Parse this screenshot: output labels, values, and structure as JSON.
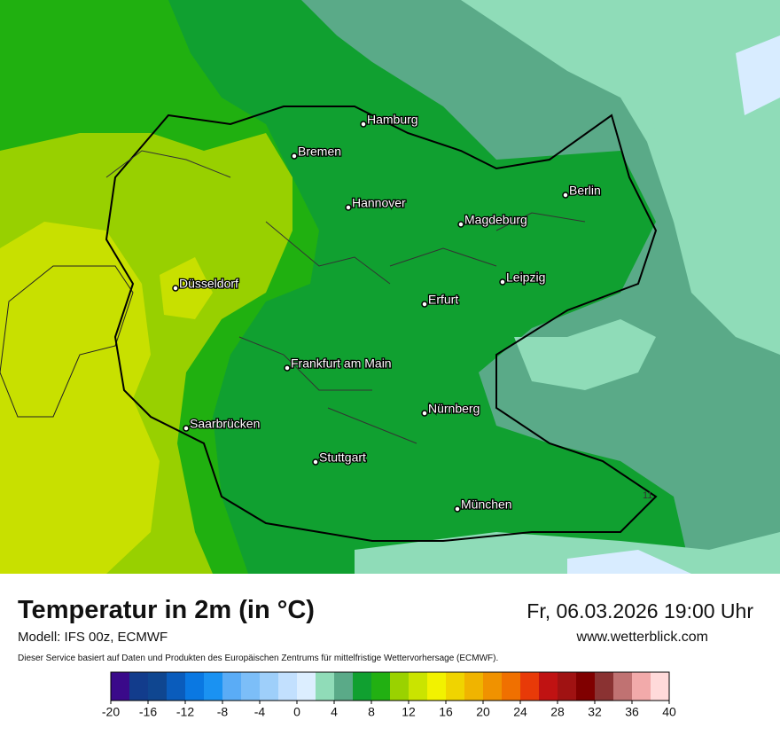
{
  "map": {
    "cities": [
      "Hamburg",
      "Bremen",
      "Berlin",
      "Hannover",
      "Magdeburg",
      "Leipzig",
      "Düsseldorf",
      "Erfurt",
      "Frankfurt am Main",
      "Nürnberg",
      "Saarbrücken",
      "Stuttgart",
      "München"
    ],
    "isotherm_label": "11"
  },
  "footer": {
    "title": "Temperatur in 2m (in °C)",
    "model": "Modell: IFS 00z, ECMWF",
    "disclaimer": "Dieser Service basiert auf Daten und Produkten des Europäischen Zentrums für mittelfristige Wettervorhersage (ECMWF).",
    "datetime": "Fr, 06.03.2026 19:00 Uhr",
    "website": "www.wetterblick.com"
  },
  "colorbar": {
    "range": [
      -20,
      40
    ],
    "ticks": [
      -20,
      -16,
      -12,
      -8,
      -4,
      0,
      4,
      8,
      12,
      16,
      20,
      24,
      28,
      32,
      36,
      40
    ],
    "colors": [
      "#3a0a8a",
      "#123c8c",
      "#0f4690",
      "#0a5cbc",
      "#0a78e2",
      "#1a92f2",
      "#5aacf6",
      "#7cbef8",
      "#9ecffa",
      "#c2e0fe",
      "#dceeff",
      "#90dcb8",
      "#5aaa88",
      "#10a030",
      "#22b012",
      "#9ad200",
      "#cae400",
      "#f2f200",
      "#f0d400",
      "#f0b400",
      "#f09200",
      "#f07000",
      "#e83a08",
      "#c01212",
      "#a01212",
      "#800000",
      "#8a3232",
      "#c07272",
      "#f2aaaa",
      "#ffdada"
    ]
  }
}
